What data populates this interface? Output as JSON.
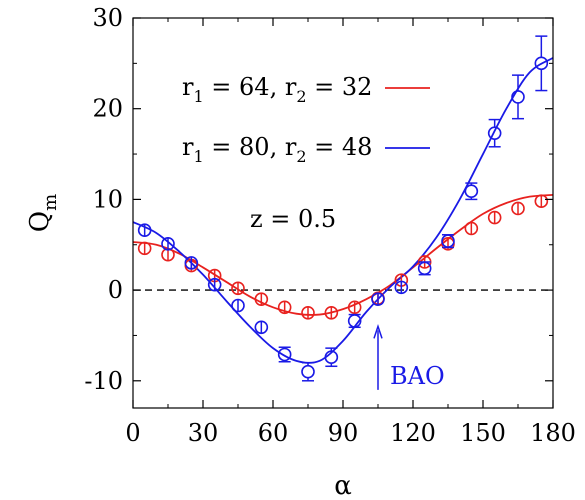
{
  "chart_data": {
    "type": "line",
    "xlabel": "α",
    "ylabel": "Q",
    "ylabel_sub": "m",
    "xlim": [
      0,
      180
    ],
    "ylim": [
      -13,
      30
    ],
    "xticks": [
      0,
      30,
      60,
      90,
      120,
      150,
      180
    ],
    "yticks": [
      -10,
      0,
      10,
      20,
      30
    ],
    "zero_line": {
      "y": 0,
      "style": "dashed"
    },
    "legend": {
      "placement": "top-left",
      "entries": [
        {
          "prefix": "r",
          "sub1": "1",
          "mid": " = 64, r",
          "sub2": "2",
          "suffix": " = 32",
          "color": "#e8221f"
        },
        {
          "prefix": "r",
          "sub1": "1",
          "mid": " = 80, r",
          "sub2": "2",
          "suffix": " = 48",
          "color": "#1a1ae6"
        }
      ]
    },
    "annotations": {
      "z_label": "z = 0.5",
      "bao_label": "BAO",
      "bao_arrow_x": 105,
      "bao_arrow_y_range": [
        -11,
        -4
      ]
    },
    "series": [
      {
        "color": "#e8221f",
        "points": [
          {
            "x": 5,
            "y": 4.6,
            "err": 0.3
          },
          {
            "x": 15,
            "y": 3.9,
            "err": 0.3
          },
          {
            "x": 25,
            "y": 2.7,
            "err": 0.3
          },
          {
            "x": 35,
            "y": 1.6,
            "err": 0.3
          },
          {
            "x": 45,
            "y": 0.2,
            "err": 0.3
          },
          {
            "x": 55,
            "y": -1.0,
            "err": 0.3
          },
          {
            "x": 65,
            "y": -1.9,
            "err": 0.3
          },
          {
            "x": 75,
            "y": -2.5,
            "err": 0.3
          },
          {
            "x": 85,
            "y": -2.5,
            "err": 0.3
          },
          {
            "x": 95,
            "y": -1.9,
            "err": 0.3
          },
          {
            "x": 105,
            "y": -0.9,
            "err": 0.3
          },
          {
            "x": 115,
            "y": 1.1,
            "err": 0.3
          },
          {
            "x": 125,
            "y": 3.1,
            "err": 0.4
          },
          {
            "x": 135,
            "y": 5.1,
            "err": 0.4
          },
          {
            "x": 145,
            "y": 6.8,
            "err": 0.4
          },
          {
            "x": 155,
            "y": 8.0,
            "err": 0.4
          },
          {
            "x": 165,
            "y": 9.0,
            "err": 0.4
          },
          {
            "x": 175,
            "y": 9.8,
            "err": 0.4
          }
        ],
        "curve": [
          [
            0,
            5.3
          ],
          [
            10,
            5.0
          ],
          [
            20,
            4.0
          ],
          [
            30,
            2.5
          ],
          [
            40,
            0.9
          ],
          [
            50,
            -0.7
          ],
          [
            60,
            -1.9
          ],
          [
            70,
            -2.6
          ],
          [
            80,
            -2.7
          ],
          [
            90,
            -2.1
          ],
          [
            100,
            -1.0
          ],
          [
            110,
            0.5
          ],
          [
            120,
            2.5
          ],
          [
            130,
            4.6
          ],
          [
            140,
            6.6
          ],
          [
            150,
            8.4
          ],
          [
            160,
            9.6
          ],
          [
            170,
            10.3
          ],
          [
            180,
            10.5
          ]
        ]
      },
      {
        "color": "#1a1ae6",
        "points": [
          {
            "x": 5,
            "y": 6.6,
            "err": 0.3
          },
          {
            "x": 15,
            "y": 5.1,
            "err": 0.3
          },
          {
            "x": 25,
            "y": 3.0,
            "err": 0.3
          },
          {
            "x": 35,
            "y": 0.6,
            "err": 0.5
          },
          {
            "x": 45,
            "y": -1.7,
            "err": 0.5
          },
          {
            "x": 55,
            "y": -4.1,
            "err": 0.5
          },
          {
            "x": 65,
            "y": -7.1,
            "err": 0.8
          },
          {
            "x": 75,
            "y": -9.0,
            "err": 1.0
          },
          {
            "x": 85,
            "y": -7.4,
            "err": 1.0
          },
          {
            "x": 95,
            "y": -3.4,
            "err": 0.7
          },
          {
            "x": 105,
            "y": -1.0,
            "err": 0.5
          },
          {
            "x": 115,
            "y": 0.3,
            "err": 0.5
          },
          {
            "x": 125,
            "y": 2.4,
            "err": 0.7
          },
          {
            "x": 135,
            "y": 5.4,
            "err": 0.7
          },
          {
            "x": 145,
            "y": 10.9,
            "err": 0.9
          },
          {
            "x": 155,
            "y": 17.3,
            "err": 1.5
          },
          {
            "x": 165,
            "y": 21.3,
            "err": 2.4
          },
          {
            "x": 175,
            "y": 25.0,
            "err": 3.0
          }
        ],
        "curve": [
          [
            0,
            7.5
          ],
          [
            10,
            6.3
          ],
          [
            20,
            4.2
          ],
          [
            30,
            1.7
          ],
          [
            40,
            -1.2
          ],
          [
            50,
            -4.0
          ],
          [
            60,
            -6.4
          ],
          [
            70,
            -7.8
          ],
          [
            80,
            -7.8
          ],
          [
            90,
            -5.6
          ],
          [
            100,
            -2.4
          ],
          [
            110,
            0.3
          ],
          [
            120,
            2.6
          ],
          [
            130,
            5.8
          ],
          [
            140,
            10.0
          ],
          [
            150,
            15.0
          ],
          [
            160,
            20.0
          ],
          [
            170,
            24.0
          ],
          [
            180,
            25.6
          ]
        ]
      }
    ]
  }
}
